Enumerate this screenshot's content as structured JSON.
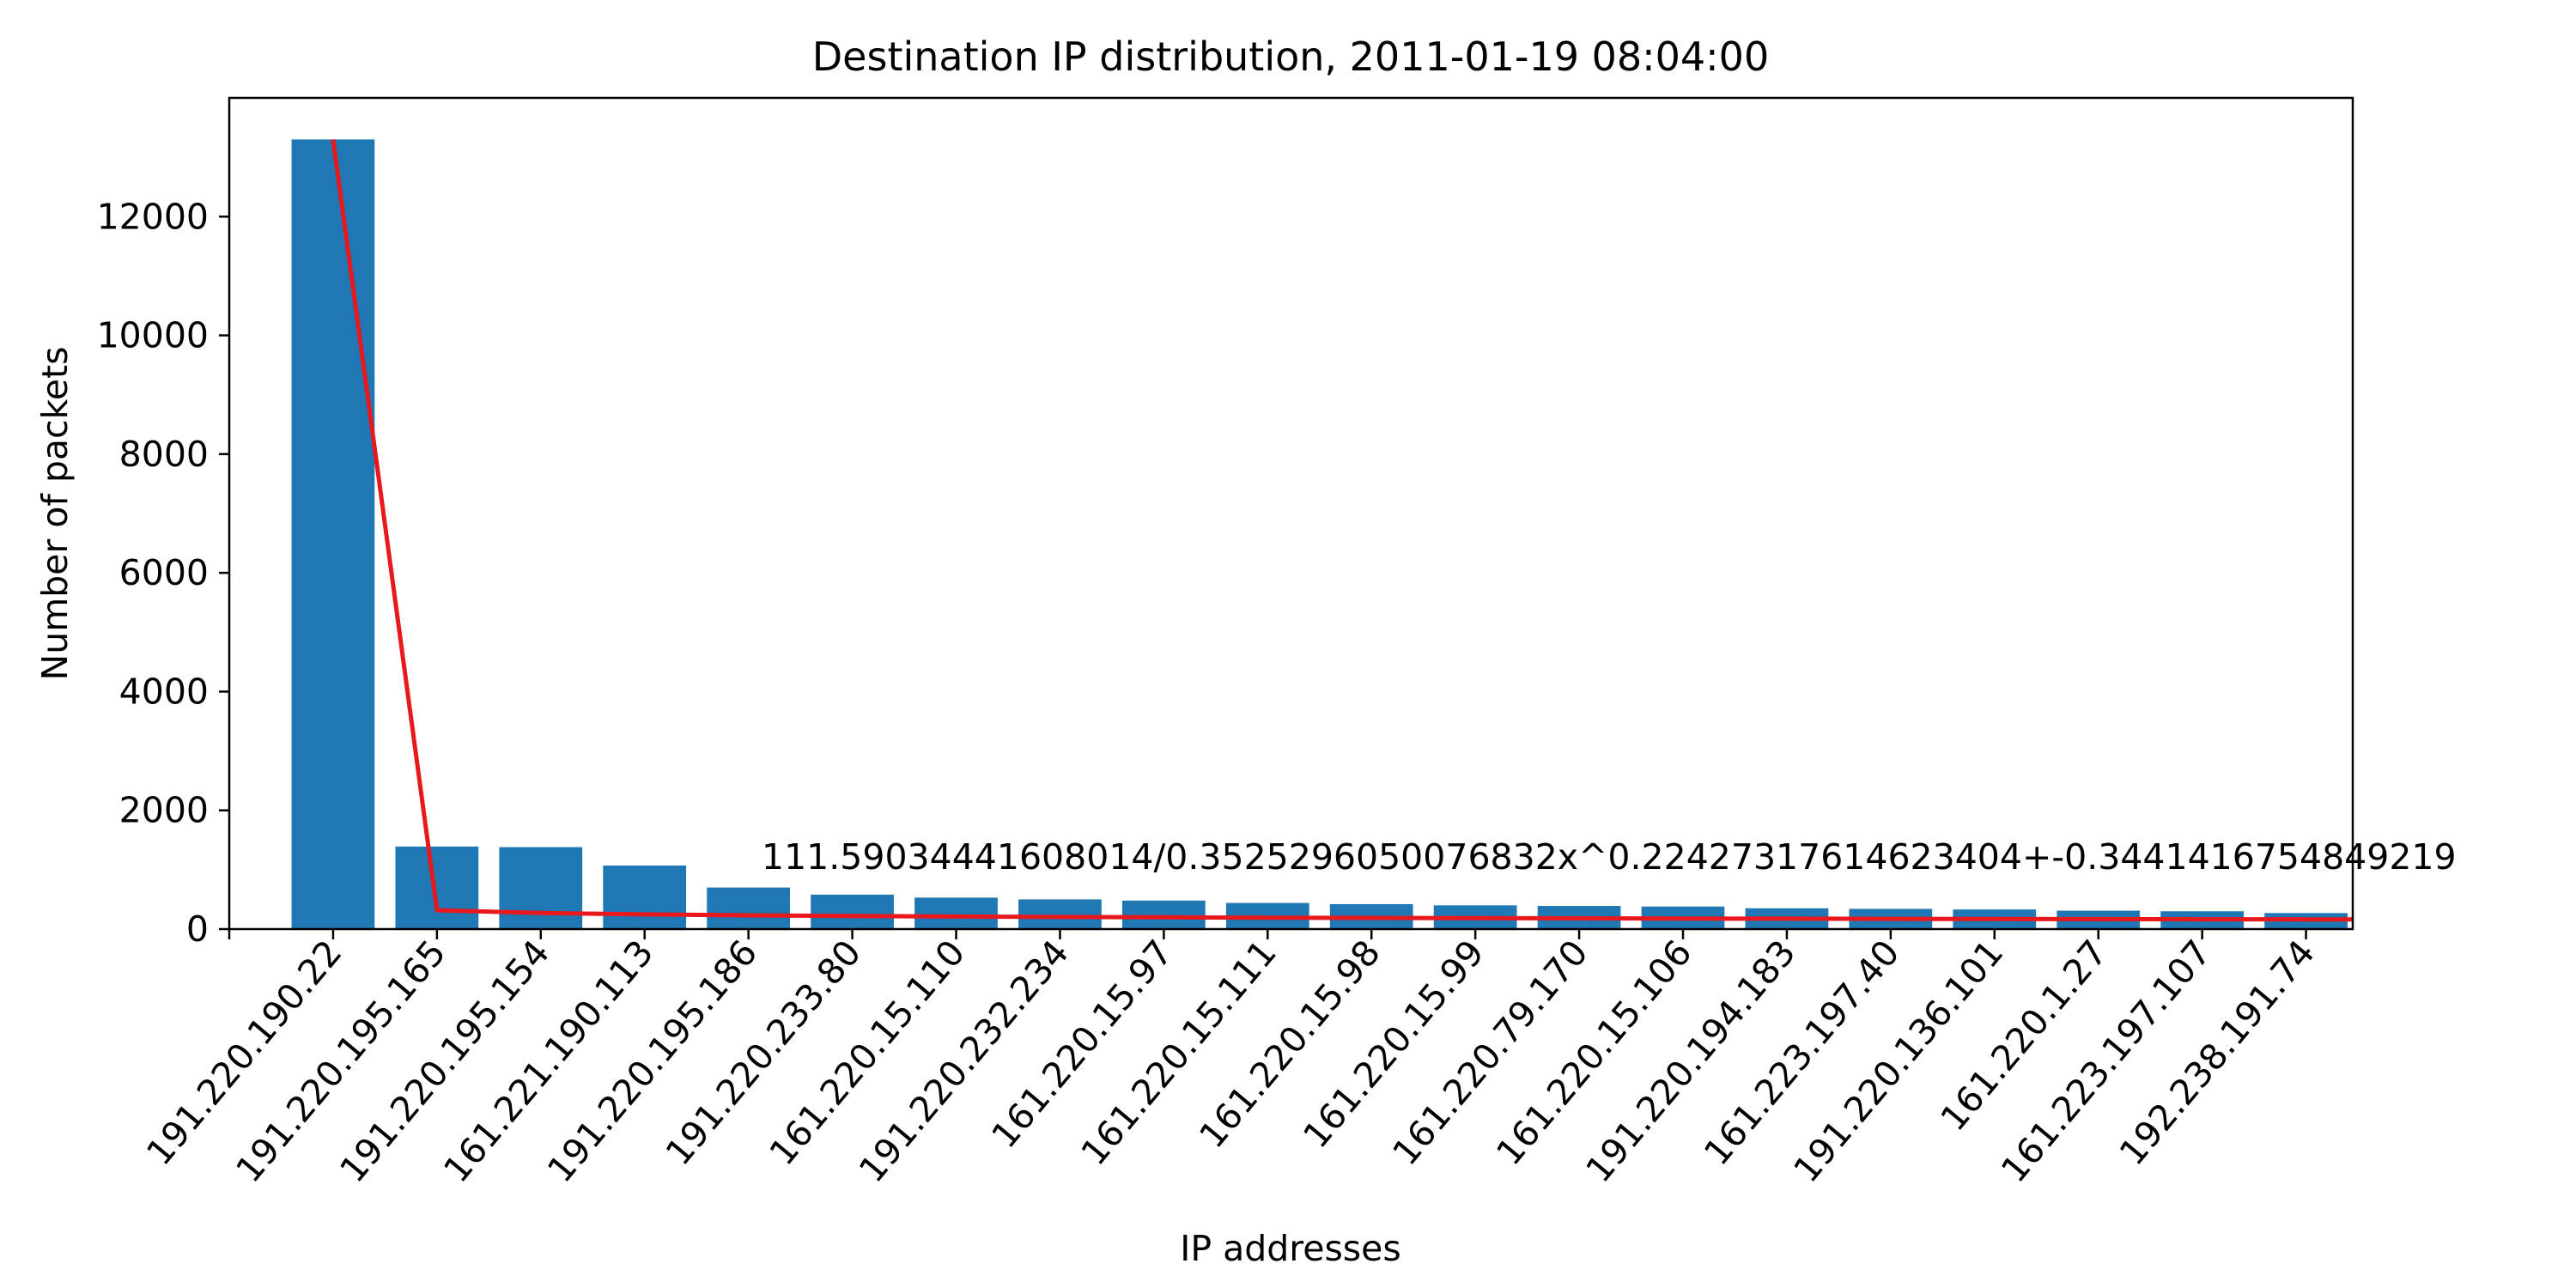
{
  "chart_data": {
    "type": "bar",
    "title": "Destination IP distribution, 2011-01-19 08:04:00",
    "xlabel": "IP addresses",
    "ylabel": "Number of packets",
    "ylim": [
      0,
      14000
    ],
    "yticks": [
      0,
      2000,
      4000,
      6000,
      8000,
      10000,
      12000
    ],
    "grid": false,
    "categories": [
      "191.220.190.22",
      "191.220.195.165",
      "191.220.195.154",
      "161.221.190.113",
      "191.220.195.186",
      "191.220.233.80",
      "161.220.15.110",
      "191.220.232.234",
      "161.220.15.97",
      "161.220.15.111",
      "161.220.15.98",
      "161.220.15.99",
      "161.220.79.170",
      "161.220.15.106",
      "191.220.194.183",
      "161.223.197.40",
      "191.220.136.101",
      "161.220.1.27",
      "161.223.197.107",
      "192.238.191.74"
    ],
    "values": [
      13300,
      1390,
      1380,
      1070,
      700,
      580,
      530,
      500,
      480,
      440,
      420,
      400,
      390,
      380,
      350,
      340,
      330,
      310,
      300,
      270
    ],
    "bar_color": "#1f77b4",
    "fit": {
      "color": "#e8181c",
      "label": "111.59034441608014/0.3525296050076832x^0.22427317614623404+-0.3441416754849219",
      "a": 111.59034441608014,
      "b": 0.3525296050076832,
      "p": 0.22427317614623404,
      "c": -0.3441416754849219,
      "y_first": 13300
    }
  }
}
